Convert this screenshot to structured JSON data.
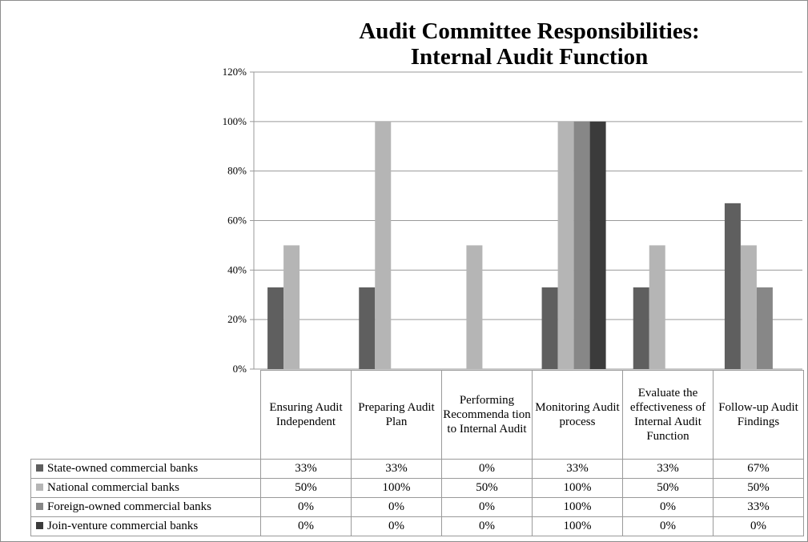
{
  "chart_data": {
    "type": "bar",
    "title": [
      "Audit Committee Responsibilities:",
      "Internal Audit Function"
    ],
    "categories": [
      "Ensuring Audit Independent",
      "Preparing Audit Plan",
      "Performing Recommenda tion to Internal Audit",
      "Monitoring Audit process",
      "Evaluate the effectiveness of Internal Audit Function",
      "Follow-up Audit Findings"
    ],
    "series": [
      {
        "name": "State-owned commercial banks",
        "color": "#5f5f5f",
        "values": [
          33,
          33,
          0,
          33,
          33,
          67
        ]
      },
      {
        "name": "National commercial banks",
        "color": "#b5b5b5",
        "values": [
          50,
          100,
          50,
          100,
          50,
          50
        ]
      },
      {
        "name": "Foreign-owned commercial banks",
        "color": "#878787",
        "values": [
          0,
          0,
          0,
          100,
          0,
          33
        ]
      },
      {
        "name": "Join-venture commercial banks",
        "color": "#3b3b3b",
        "values": [
          0,
          0,
          0,
          100,
          0,
          0
        ]
      }
    ],
    "ylim": [
      0,
      120
    ],
    "yticks": [
      "0%",
      "20%",
      "40%",
      "60%",
      "80%",
      "100%",
      "120%"
    ],
    "value_suffix": "%",
    "grid": true,
    "legend": "data-table"
  }
}
